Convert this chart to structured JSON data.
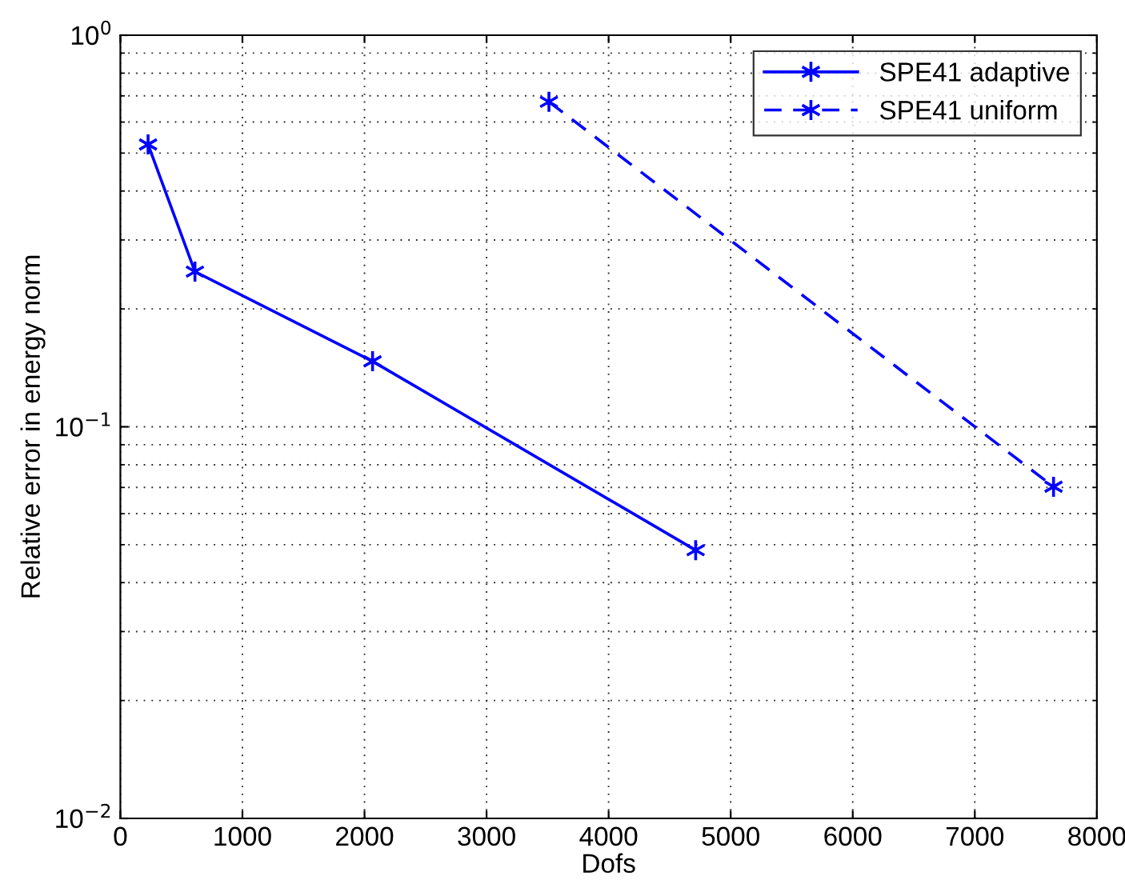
{
  "chart_data": {
    "type": "line",
    "xlabel": "Dofs",
    "ylabel": "Relative error in energy norm",
    "log": "y",
    "grid": true,
    "legend": "top right",
    "marker": "cross",
    "xlim": [
      0,
      8000
    ],
    "xticks": [
      0,
      1000,
      2000,
      3000,
      4000,
      5000,
      6000,
      7000,
      8000
    ],
    "ylim": [
      0.01,
      1
    ],
    "yticks": [
      {
        "value": 0.01,
        "label": "10$^{−2}$"
      },
      {
        "value": 0.1,
        "label": "10$^{−1}$"
      },
      {
        "value": 1,
        "label": "10$^{0}$"
      }
    ],
    "series": [
      {
        "name": "SPE41 adaptive",
        "color": "#0000ff",
        "line_style": "solid",
        "x": [
          227,
          611,
          2066,
          4713
        ],
        "values": [
          0.526,
          0.249,
          0.147,
          0.0484
        ]
      },
      {
        "name": "SPE41 uniform",
        "color": "#0000ff",
        "line_style": "dashed",
        "x": [
          3511,
          7645
        ],
        "values": [
          0.676,
          0.0703
        ]
      }
    ]
  }
}
